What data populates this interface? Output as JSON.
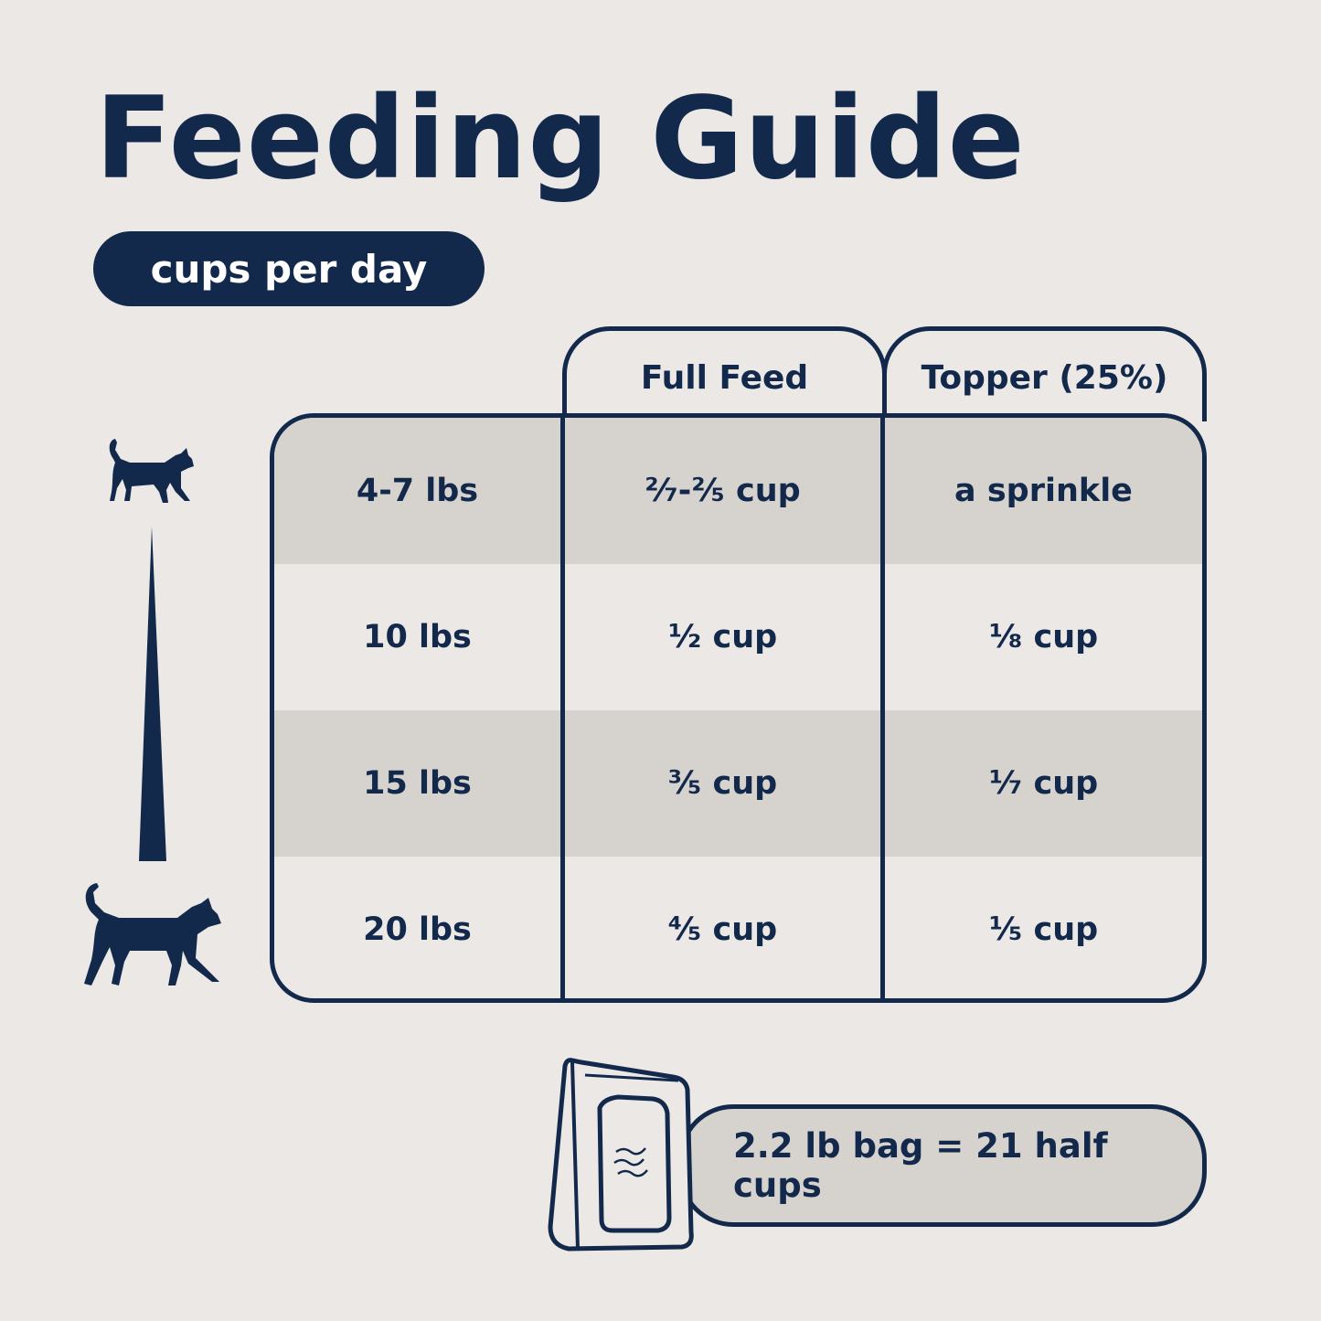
{
  "title": "Feeding Guide",
  "unit_pill": "cups per day",
  "table": {
    "headers": [
      "Full Feed",
      "Topper (25%)"
    ],
    "rows": [
      {
        "weight": "4-7 lbs",
        "full_feed": "²⁄₇-²⁄₅ cup",
        "topper": "a sprinkle"
      },
      {
        "weight": "10 lbs",
        "full_feed": "¹⁄₂ cup",
        "topper": "¹⁄₈ cup"
      },
      {
        "weight": "15 lbs",
        "full_feed": "³⁄₅ cup",
        "topper": "¹⁄₇ cup"
      },
      {
        "weight": "20 lbs",
        "full_feed": "⁴⁄₅ cup",
        "topper": "¹⁄₅ cup"
      }
    ]
  },
  "bag_note": "2.2 lb bag = 21 half cups",
  "colors": {
    "background": "#ebe8e5",
    "navy": "#13294b",
    "shade": "#d6d2ce"
  },
  "icons": [
    "small-cat-icon",
    "size-scale-wedge",
    "large-cat-icon",
    "food-bag-icon"
  ]
}
